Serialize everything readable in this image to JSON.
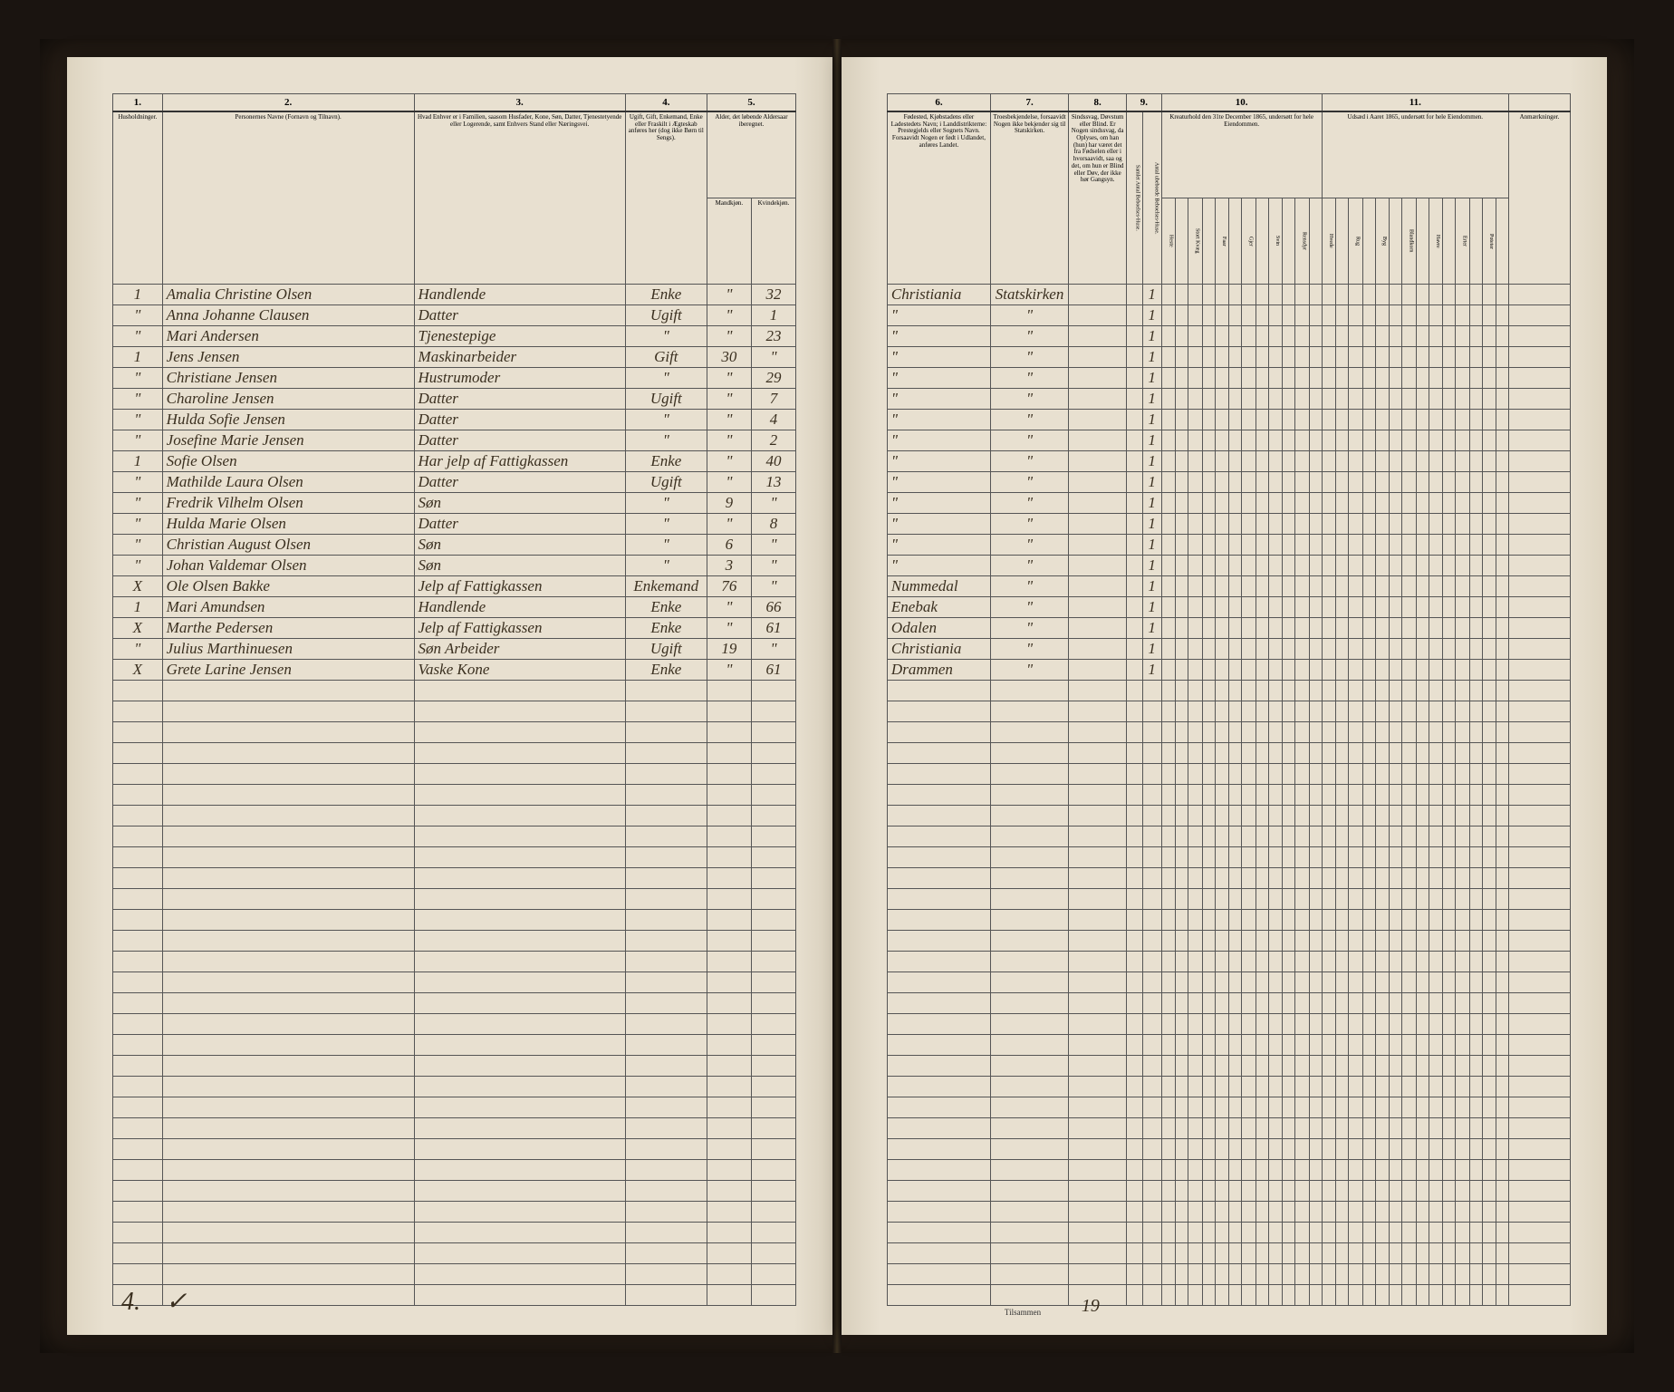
{
  "page_background": "#e8e0d0",
  "ink_color": "#3a2f1f",
  "rule_color": "#555555",
  "left": {
    "col_numbers": [
      "1.",
      "2.",
      "3.",
      "4.",
      "5."
    ],
    "headers": {
      "c1": "Husholdninger.",
      "c2": "Personernes Navne (Fornavn og Tilnavn).",
      "c3": "Hvad Enhver er i Familien, saasom Husfader, Kone, Søn, Datter, Tjenestetyende eller Logerende, samt Enhvers Stand eller Næringsvei.",
      "c4": "Ugift, Gift, Enkemand, Enke eller Fraskilt i Ægteskab anføres her (dog ikke Børn til Sengs).",
      "c5": "Alder, det løbende Aldersaar iberegnet.",
      "c5a": "Mandkjøn.",
      "c5b": "Kvindekjøn."
    },
    "rows": [
      {
        "c1": "1",
        "c2": "Amalia Christine Olsen",
        "c3": "Handlende",
        "c4": "Enke",
        "c5a": "\"",
        "c5b": "32"
      },
      {
        "c1": "\"",
        "c2": "Anna Johanne Clausen",
        "c3": "Datter",
        "c4": "Ugift",
        "c5a": "\"",
        "c5b": "1"
      },
      {
        "c1": "\"",
        "c2": "Mari Andersen",
        "c3": "Tjenestepige",
        "c4": "\"",
        "c5a": "\"",
        "c5b": "23"
      },
      {
        "c1": "1",
        "c2": "Jens Jensen",
        "c3": "Maskinarbeider",
        "c4": "Gift",
        "c5a": "30",
        "c5b": "\""
      },
      {
        "c1": "\"",
        "c2": "Christiane Jensen",
        "c3": "Hustrumoder",
        "c4": "\"",
        "c5a": "\"",
        "c5b": "29"
      },
      {
        "c1": "\"",
        "c2": "Charoline Jensen",
        "c3": "Datter",
        "c4": "Ugift",
        "c5a": "\"",
        "c5b": "7"
      },
      {
        "c1": "\"",
        "c2": "Hulda Sofie Jensen",
        "c3": "Datter",
        "c4": "\"",
        "c5a": "\"",
        "c5b": "4"
      },
      {
        "c1": "\"",
        "c2": "Josefine Marie Jensen",
        "c3": "Datter",
        "c4": "\"",
        "c5a": "\"",
        "c5b": "2"
      },
      {
        "c1": "1",
        "c2": "Sofie Olsen",
        "c3": "Har jelp af Fattigkassen",
        "c4": "Enke",
        "c5a": "\"",
        "c5b": "40"
      },
      {
        "c1": "\"",
        "c2": "Mathilde Laura Olsen",
        "c3": "Datter",
        "c4": "Ugift",
        "c5a": "\"",
        "c5b": "13"
      },
      {
        "c1": "\"",
        "c2": "Fredrik Vilhelm Olsen",
        "c3": "Søn",
        "c4": "\"",
        "c5a": "9",
        "c5b": "\""
      },
      {
        "c1": "\"",
        "c2": "Hulda Marie Olsen",
        "c3": "Datter",
        "c4": "\"",
        "c5a": "\"",
        "c5b": "8"
      },
      {
        "c1": "\"",
        "c2": "Christian August Olsen",
        "c3": "Søn",
        "c4": "\"",
        "c5a": "6",
        "c5b": "\""
      },
      {
        "c1": "\"",
        "c2": "Johan Valdemar Olsen",
        "c3": "Søn",
        "c4": "\"",
        "c5a": "3",
        "c5b": "\""
      },
      {
        "c1": "X",
        "c2": "Ole Olsen Bakke",
        "c3": "Jelp af Fattigkassen",
        "c4": "Enkemand",
        "c5a": "76",
        "c5b": "\""
      },
      {
        "c1": "1",
        "c2": "Mari Amundsen",
        "c3": "Handlende",
        "c4": "Enke",
        "c5a": "\"",
        "c5b": "66"
      },
      {
        "c1": "X",
        "c2": "Marthe Pedersen",
        "c3": "Jelp af Fattigkassen",
        "c4": "Enke",
        "c5a": "\"",
        "c5b": "61"
      },
      {
        "c1": "\"",
        "c2": "Julius Marthinuesen",
        "c3": "Søn Arbeider",
        "c4": "Ugift",
        "c5a": "19",
        "c5b": "\""
      },
      {
        "c1": "X",
        "c2": "Grete Larine Jensen",
        "c3": "Vaske Kone",
        "c4": "Enke",
        "c5a": "\"",
        "c5b": "61"
      }
    ],
    "footer_mark": "4.",
    "footer_check": "✓",
    "blank_rows": 30
  },
  "right": {
    "col_numbers": [
      "6.",
      "7.",
      "8.",
      "9.",
      "10.",
      "11."
    ],
    "headers": {
      "c6": "Fødested, Kjøbstadens eller Ladestedets Navn; i Landdistrikterne: Prestegjelds eller Sognets Navn. Forsaavidt Nogen er født i Udlandet, anføres Landet.",
      "c7": "Troesbekjendelse, forsaavidt Nogen ikke bekjender sig til Statskirken.",
      "c8": "Sindssvag, Døvstum eller Blind. Er Nogen sindssvag, da Oplyses, om han (hun) har været det fra Fødselen eller i hvorsaavidt, saa og det, om hun er Blind eller Døv, der ikke hør Gangsyn.",
      "c9": "Samlet Antal Beboelses-Huse.",
      "c9b": "Antal ubeboede Beboelses-Huse.",
      "c10": "Kreaturhold den 31te December 1865, undersøtt for hele Eiendommen.",
      "c10_sub": [
        "Heste",
        "Stort Kvæg",
        "Faar",
        "Gjer",
        "Svin",
        "Rensdyr"
      ],
      "c11": "Udsæd i Aaret 1865, undersøtt for hele Eiendommen.",
      "c11_sub": [
        "Hvede",
        "Rug",
        "Byg",
        "Blandkorn",
        "Havre",
        "Erter",
        "Poteter"
      ],
      "c12": "Anmærkninger."
    },
    "rows": [
      {
        "c6": "Christiania",
        "c7": "Statskirken",
        "mark": "1"
      },
      {
        "c6": "\"",
        "c7": "\"",
        "mark": "1"
      },
      {
        "c6": "\"",
        "c7": "\"",
        "mark": "1"
      },
      {
        "c6": "\"",
        "c7": "\"",
        "mark": "1"
      },
      {
        "c6": "\"",
        "c7": "\"",
        "mark": "1"
      },
      {
        "c6": "\"",
        "c7": "\"",
        "mark": "1"
      },
      {
        "c6": "\"",
        "c7": "\"",
        "mark": "1"
      },
      {
        "c6": "\"",
        "c7": "\"",
        "mark": "1"
      },
      {
        "c6": "\"",
        "c7": "\"",
        "mark": "1"
      },
      {
        "c6": "\"",
        "c7": "\"",
        "mark": "1"
      },
      {
        "c6": "\"",
        "c7": "\"",
        "mark": "1"
      },
      {
        "c6": "\"",
        "c7": "\"",
        "mark": "1"
      },
      {
        "c6": "\"",
        "c7": "\"",
        "mark": "1"
      },
      {
        "c6": "\"",
        "c7": "\"",
        "mark": "1"
      },
      {
        "c6": "Nummedal",
        "c7": "\"",
        "mark": "1"
      },
      {
        "c6": "Enebak",
        "c7": "\"",
        "mark": "1"
      },
      {
        "c6": "Odalen",
        "c7": "\"",
        "mark": "1"
      },
      {
        "c6": "Christiania",
        "c7": "\"",
        "mark": "1"
      },
      {
        "c6": "Drammen",
        "c7": "\"",
        "mark": "1"
      }
    ],
    "footer_label": "Tilsammen",
    "footer_sum": "19",
    "blank_rows": 30
  }
}
